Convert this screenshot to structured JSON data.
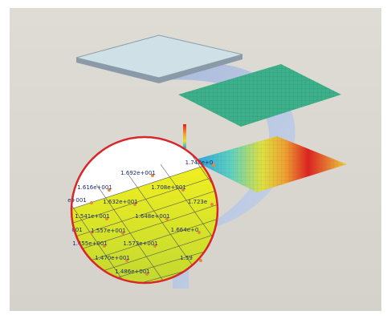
{
  "magnifier": {
    "labels": [
      "1.748e+0",
      "1.692e+001",
      "1.616e+001",
      "1.708e+001",
      "e+001",
      "1.632e+001",
      "1.723e",
      "1.541e+001",
      "1.648e+001",
      "001",
      "1.557e+001",
      "1.664e+0",
      "1.455e+001",
      "1.573e+001",
      "1.470e+001",
      "1.59",
      "1.486e+001"
    ]
  }
}
